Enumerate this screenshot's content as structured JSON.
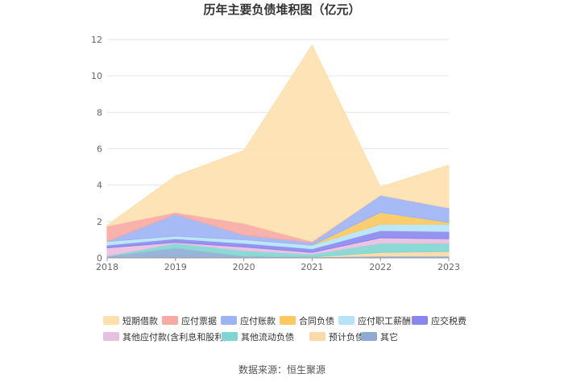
{
  "chart_data": {
    "type": "area",
    "stacked": true,
    "title": "历年主要负债堆积图（亿元）",
    "xlabel": "",
    "ylabel": "",
    "ylim": [
      0,
      12
    ],
    "yticks": [
      "0",
      "2",
      "4",
      "6",
      "8",
      "10",
      "12"
    ],
    "categories": [
      "2018",
      "2019",
      "2020",
      "2021",
      "2022",
      "2023"
    ],
    "grid": true,
    "legend_position": "bottom",
    "series": [
      {
        "name": "其它",
        "color": "#8fabd4",
        "values": [
          0.1,
          0.55,
          0.1,
          0.05,
          0.1,
          0.1
        ]
      },
      {
        "name": "预计负债",
        "color": "#fcd9a8",
        "values": [
          0.0,
          0.0,
          0.0,
          0.0,
          0.2,
          0.25
        ]
      },
      {
        "name": "其他流动负债",
        "color": "#7fd6d0",
        "values": [
          0.0,
          0.25,
          0.3,
          0.15,
          0.5,
          0.45
        ]
      },
      {
        "name": "其他应付款(含利息和股利)",
        "color": "#e8bfe0",
        "values": [
          0.45,
          0.05,
          0.2,
          0.1,
          0.3,
          0.25
        ]
      },
      {
        "name": "应交税费",
        "color": "#8a86ee",
        "values": [
          0.15,
          0.2,
          0.2,
          0.2,
          0.4,
          0.4
        ]
      },
      {
        "name": "应付职工薪酬",
        "color": "#b5e4f7",
        "values": [
          0.2,
          0.15,
          0.2,
          0.2,
          0.35,
          0.4
        ]
      },
      {
        "name": "合同负债",
        "color": "#fcc85f",
        "values": [
          0.0,
          0.0,
          0.0,
          0.0,
          0.65,
          0.1
        ]
      },
      {
        "name": "应付账款",
        "color": "#9cb4f4",
        "values": [
          0.0,
          1.2,
          0.25,
          0.15,
          0.95,
          0.8
        ]
      },
      {
        "name": "应付票据",
        "color": "#f7a9a2",
        "values": [
          0.85,
          0.1,
          0.65,
          0.05,
          0.0,
          0.0
        ]
      },
      {
        "name": "短期借款",
        "color": "#fde0ae",
        "values": [
          0.05,
          2.0,
          4.0,
          10.8,
          0.45,
          2.35
        ]
      }
    ],
    "legend_order": [
      "短期借款",
      "应付票据",
      "应付账款",
      "合同负债",
      "应付职工薪酬",
      "应交税费",
      "其他应付款(含利息和股利)",
      "其他流动负债",
      "预计负债",
      "其它"
    ]
  },
  "source_text": "数据来源：恒生聚源"
}
